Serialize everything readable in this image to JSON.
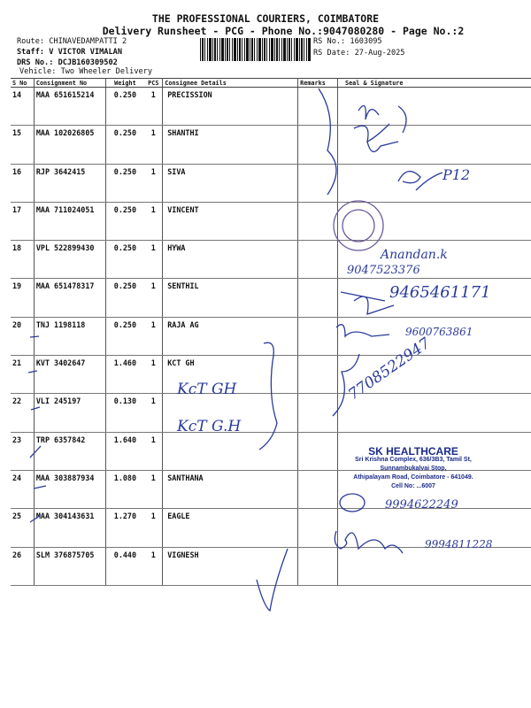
{
  "header": {
    "company": "THE PROFESSIONAL COURIERS, COIMBATORE",
    "subtitle": "Delivery Runsheet - PCG - Phone No.:9047080280 - Page No.:2",
    "route": "Route: CHINAVEDAMPATTI 2",
    "staff": "Staff: V VICTOR VIMALAN",
    "drs": "DRS No.: DCJB160309502",
    "vehicle": "Vehicle: Two Wheeler Delivery",
    "rs_no": "RS No.: 1603095",
    "rs_date": "RS Date: 27-Aug-2025"
  },
  "table": {
    "columns": [
      "S No",
      "Consignment No",
      "Weight",
      "PCS",
      "Consignee Details",
      "Remarks",
      "Seal & Signature"
    ],
    "rows": [
      {
        "sno": "14",
        "cn": "MAA 651615214",
        "wt": "0.250",
        "pcs": "1",
        "consignee": "PRECISSION"
      },
      {
        "sno": "15",
        "cn": "MAA 102026805",
        "wt": "0.250",
        "pcs": "1",
        "consignee": "SHANTHI"
      },
      {
        "sno": "16",
        "cn": "RJP 3642415",
        "wt": "0.250",
        "pcs": "1",
        "consignee": "SIVA"
      },
      {
        "sno": "17",
        "cn": "MAA 711024051",
        "wt": "0.250",
        "pcs": "1",
        "consignee": "VINCENT"
      },
      {
        "sno": "18",
        "cn": "VPL 522899430",
        "wt": "0.250",
        "pcs": "1",
        "consignee": "HYWA"
      },
      {
        "sno": "19",
        "cn": "MAA 651478317",
        "wt": "0.250",
        "pcs": "1",
        "consignee": "SENTHIL"
      },
      {
        "sno": "20",
        "cn": "TNJ 1198118",
        "wt": "0.250",
        "pcs": "1",
        "consignee": "RAJA AG"
      },
      {
        "sno": "21",
        "cn": "KVT 3402647",
        "wt": "1.460",
        "pcs": "1",
        "consignee": "KCT GH"
      },
      {
        "sno": "22",
        "cn": "VLI 245197",
        "wt": "0.130",
        "pcs": "1",
        "consignee": ""
      },
      {
        "sno": "23",
        "cn": "TRP 6357842",
        "wt": "1.640",
        "pcs": "1",
        "consignee": ""
      },
      {
        "sno": "24",
        "cn": "MAA 303887934",
        "wt": "1.080",
        "pcs": "1",
        "consignee": "SANTHANA"
      },
      {
        "sno": "25",
        "cn": "MAA 304143631",
        "wt": "1.270",
        "pcs": "1",
        "consignee": "EAGLE"
      },
      {
        "sno": "26",
        "cn": "SLM 376875705",
        "wt": "0.440",
        "pcs": "1",
        "consignee": "VIGNESH"
      }
    ]
  },
  "handwriting": {
    "kct1": "KcT GH",
    "kct2": "KcT G.H",
    "sig_p12": "P12",
    "sig_name": "Anandan.k",
    "phone1": "9047523376",
    "phone2": "9465461171",
    "phone3": "9600763861",
    "phone4": "7708522947",
    "phone5": "9994622249",
    "phone6": "9994811228"
  },
  "stamp": {
    "name": "SK HEALTHCARE",
    "line1": "Sri Krishna Complex, 636/3B3, Tamil St,",
    "line2": "Sunnambukalvai Stop,",
    "line3": "Athipalayam Road, Coimbatore - 641049.",
    "line4": "Cell No: ...6007"
  },
  "colors": {
    "ink": "#2a3a9a",
    "stamp": "#1b2a8a"
  }
}
